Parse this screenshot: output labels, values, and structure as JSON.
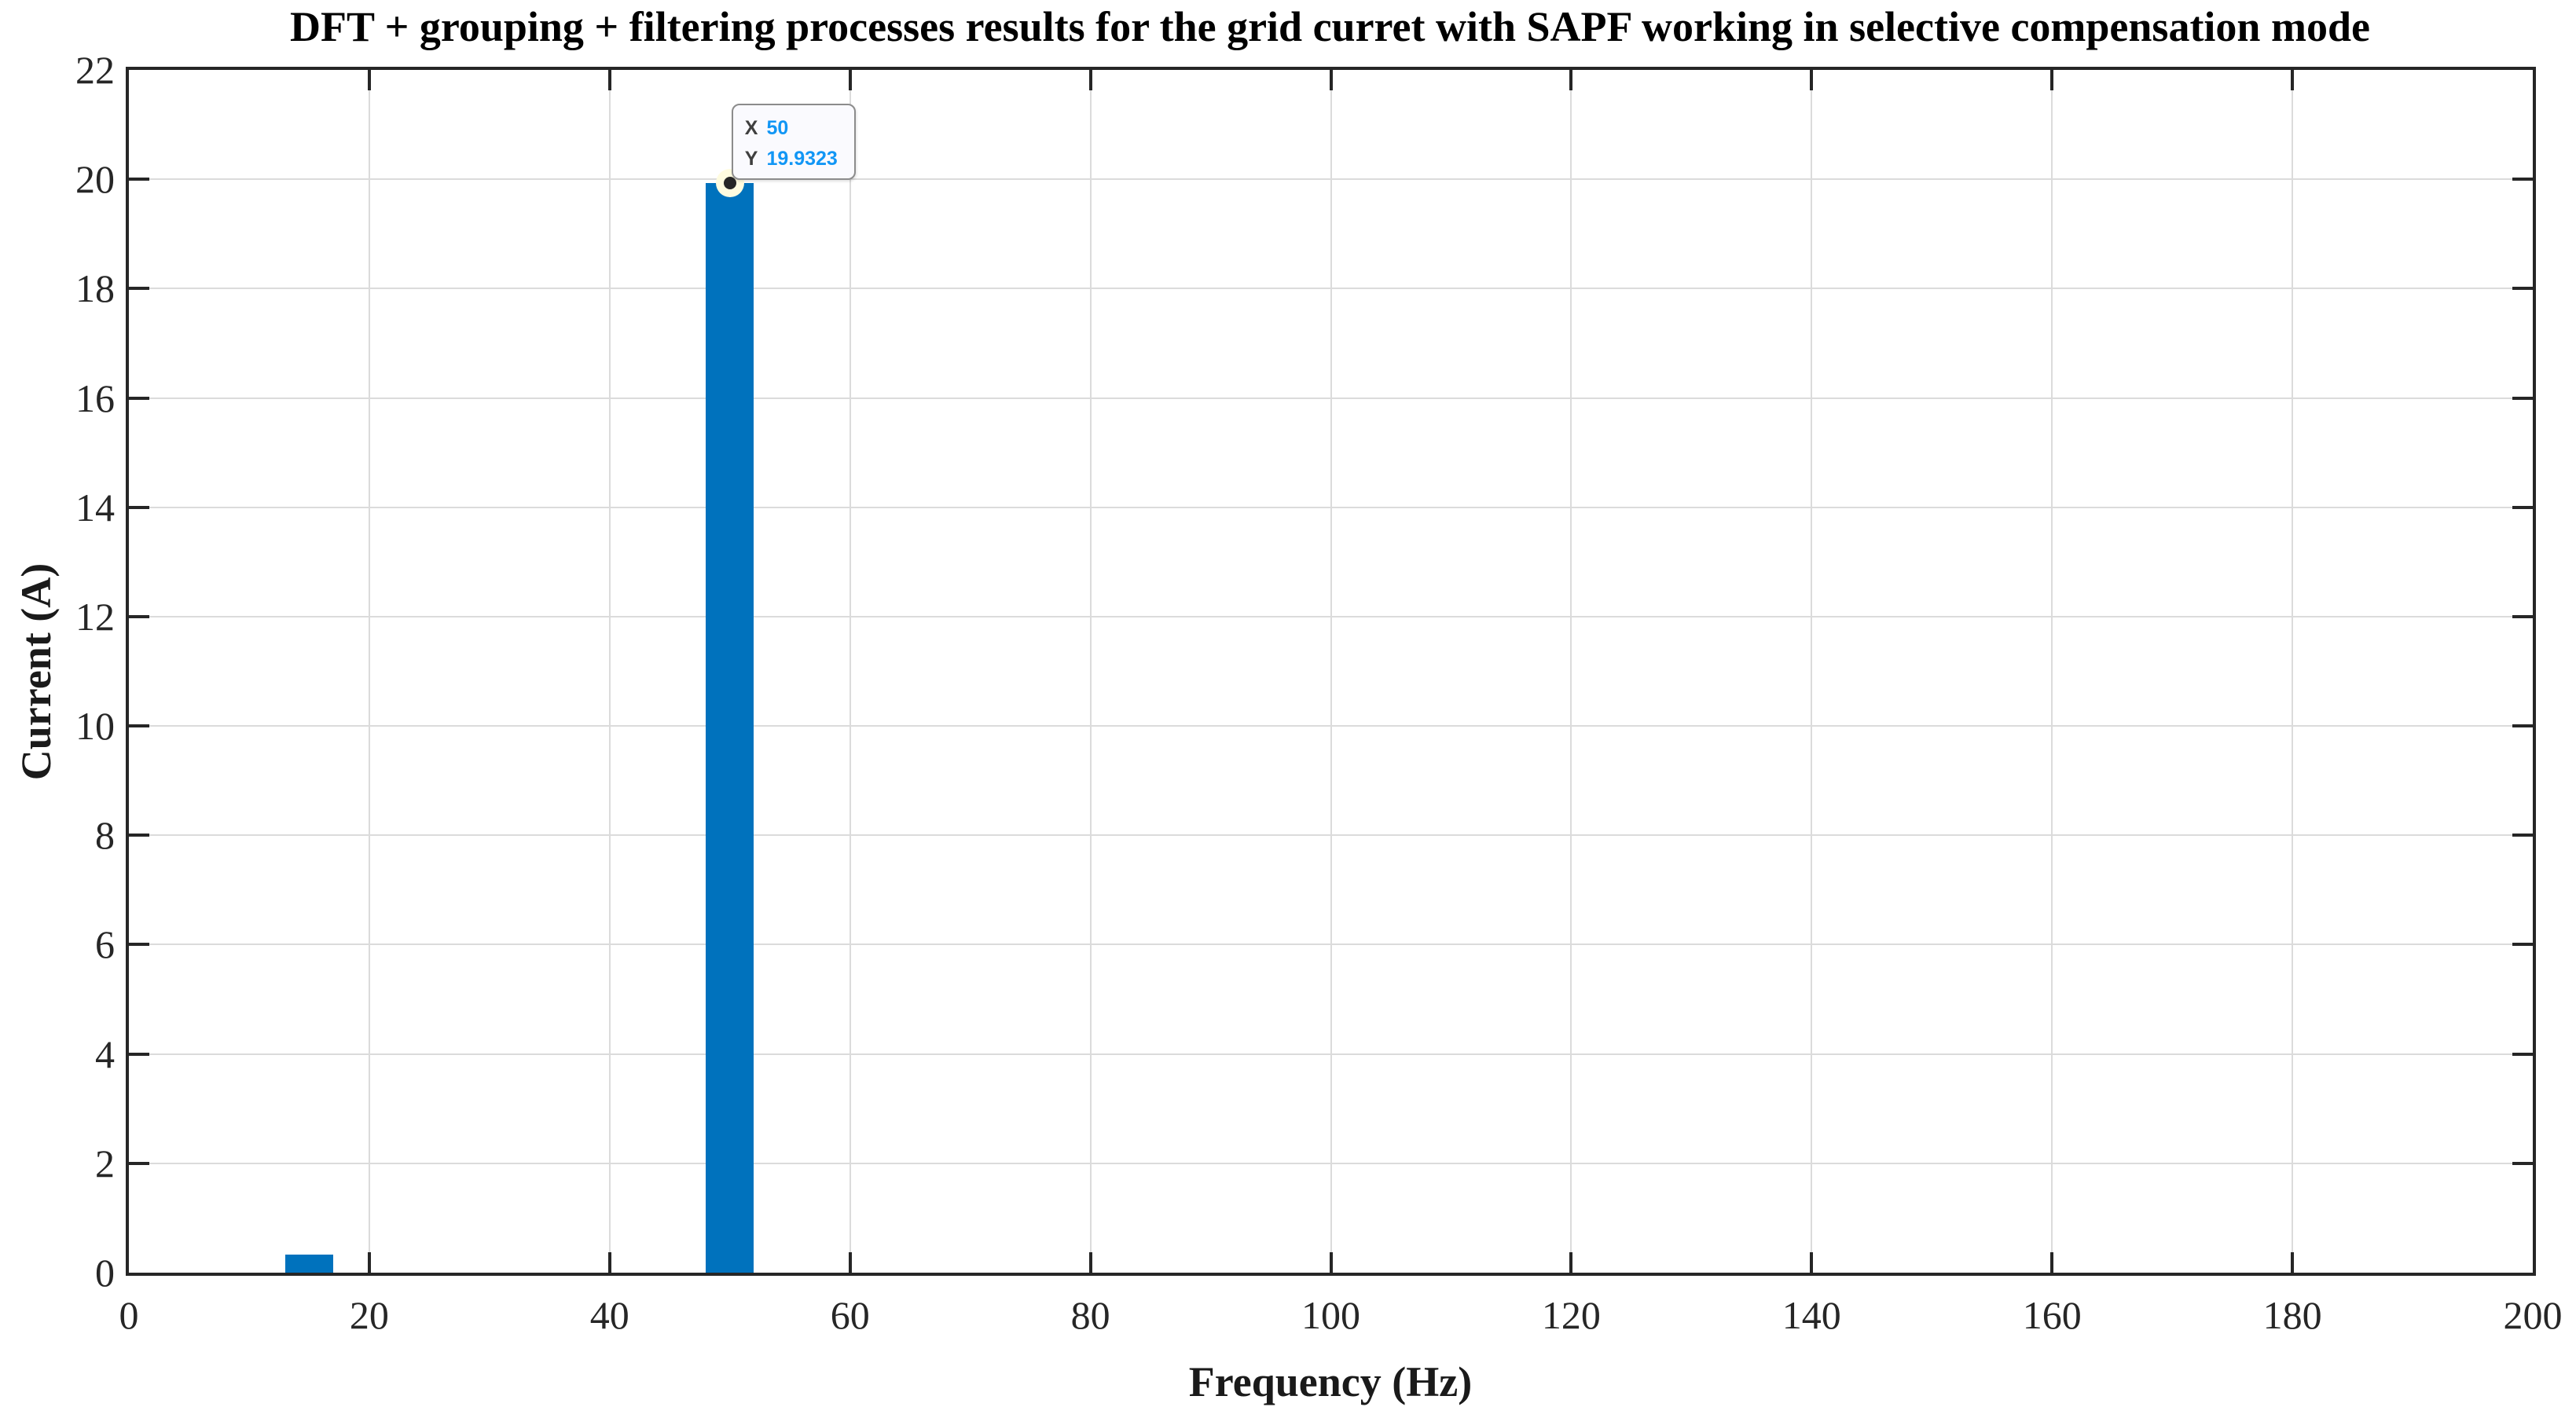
{
  "chart_data": {
    "type": "bar",
    "title": "DFT + grouping + filtering processes results for the grid curret with SAPF working in selective compensation mode",
    "xlabel": "Frequency (Hz)",
    "ylabel": "Current (A)",
    "x": [
      15,
      50
    ],
    "values": [
      0.33,
      19.9323
    ],
    "bar_width_x": 4,
    "xlim": [
      0,
      200
    ],
    "ylim": [
      0,
      22
    ],
    "xticks": [
      0,
      20,
      40,
      60,
      80,
      100,
      120,
      140,
      160,
      180,
      200
    ],
    "xtick_labels": [
      "0",
      "20",
      "40",
      "60",
      "80",
      "100",
      "120",
      "140",
      "160",
      "180",
      "200"
    ],
    "yticks": [
      0,
      2,
      4,
      6,
      8,
      10,
      12,
      14,
      16,
      18,
      20,
      22
    ],
    "ytick_labels": [
      "0",
      "2",
      "4",
      "6",
      "8",
      "10",
      "12",
      "14",
      "16",
      "18",
      "20",
      "22"
    ],
    "grid": true,
    "legend": null,
    "selected_point": {
      "x": 50,
      "y": 19.9323
    }
  },
  "datatip": {
    "x_label": "X",
    "x_value": "50",
    "y_label": "Y",
    "y_value": "19.9323"
  },
  "colors": {
    "bar": "#0072BD",
    "grid": "#DBDBDB",
    "axis": "#262626",
    "title": "#000000",
    "datatip_bg": "#FAFAFE",
    "datatip_border": "#8C8C8C",
    "datatip_label": "#3F3F3F",
    "datatip_value": "#1196F5",
    "marker_dot": "#262626",
    "marker_halo": "#FFFCE0"
  }
}
